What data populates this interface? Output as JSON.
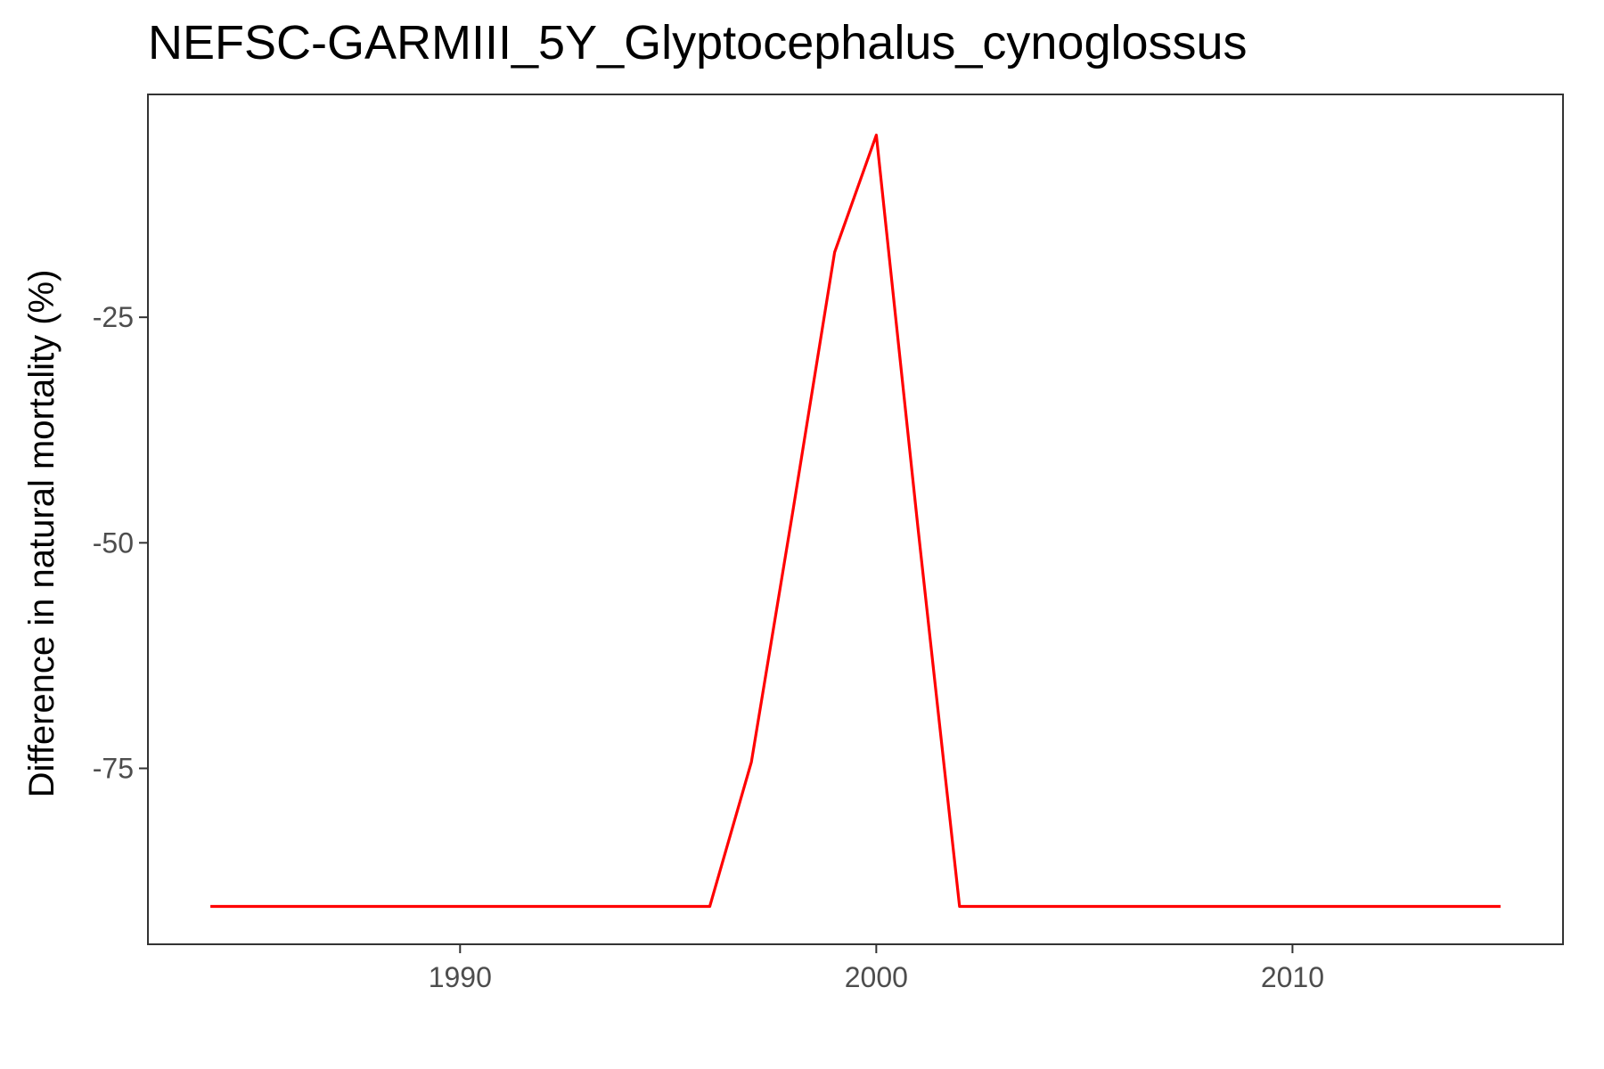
{
  "chart_data": {
    "type": "line",
    "title": "NEFSC-GARMIII_5Y_Glyptocephalus_cynoglossus",
    "xlabel": "",
    "ylabel": "Difference in natural mortality (%)",
    "xlim": [
      1982.5,
      2016.5
    ],
    "ylim": [
      -94.5,
      -0.3
    ],
    "x_ticks": [
      1990,
      2000,
      2010
    ],
    "x_tick_labels": [
      "1990",
      "2000",
      "2010"
    ],
    "y_ticks": [
      -75,
      -50,
      -25
    ],
    "y_tick_labels": [
      "-75",
      "-50",
      "-25"
    ],
    "grid": false,
    "legend": "none",
    "series": [
      {
        "color": "#ff0000",
        "x": [
          1984,
          1985,
          1986,
          1987,
          1988,
          1989,
          1990,
          1991,
          1992,
          1993,
          1994,
          1995,
          1996,
          1997,
          1998,
          1999,
          2000,
          2001,
          2002,
          2003,
          2004,
          2005,
          2006,
          2007,
          2008,
          2009,
          2010,
          2011,
          2012,
          2013,
          2014,
          2015
        ],
        "y": [
          -90.3,
          -90.3,
          -90.3,
          -90.3,
          -90.3,
          -90.3,
          -90.3,
          -90.3,
          -90.3,
          -90.3,
          -90.3,
          -90.3,
          -90.3,
          -74.3,
          -46.4,
          -17.8,
          -4.8,
          -48.3,
          -90.3,
          -90.3,
          -90.3,
          -90.3,
          -90.3,
          -90.3,
          -90.3,
          -90.3,
          -90.3,
          -90.3,
          -90.3,
          -90.3,
          -90.3,
          -90.3
        ]
      }
    ]
  }
}
